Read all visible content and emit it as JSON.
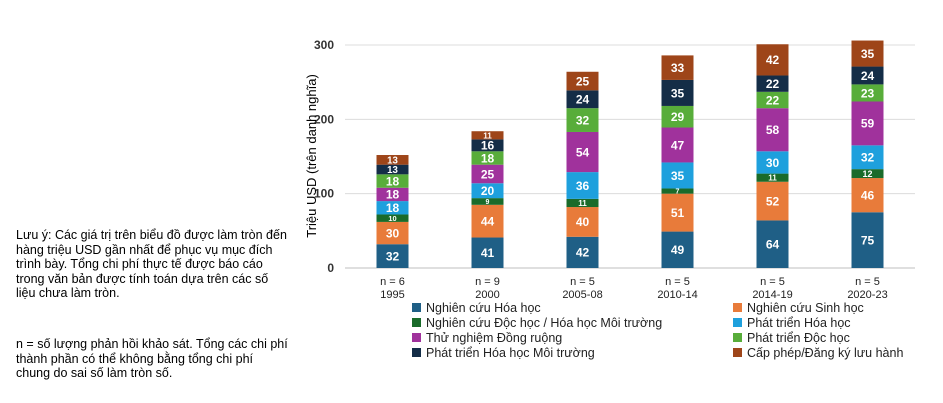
{
  "notes": {
    "rounding": "Lưu ý: Các giá trị trên biểu đồ được làm tròn đến hàng triệu USD gần nhất để phục vụ mục đích trình bày. Tổng chi phí thực tế được báo cáo trong văn bản được tính toán dựa trên các số liệu chưa làm tròn.",
    "n_definition": "n = số lượng phản hồi khảo sát. Tổng các chi phí thành phần có thể không bằng tổng chi phí chung do sai số làm tròn số."
  },
  "chart_data": {
    "type": "bar",
    "stacked": true,
    "title": "",
    "xlabel": "",
    "ylabel": "Triệu USD (trên danh nghĩa)",
    "ylim": [
      0,
      300
    ],
    "yticks": [
      0,
      100,
      200,
      300
    ],
    "grid": true,
    "legend": "bottom",
    "categories": [
      "1995",
      "2000",
      "2005-08",
      "2010-14",
      "2014-19",
      "2020-23"
    ],
    "n_labels": [
      "n = 6",
      "n = 9",
      "n = 5",
      "n = 5",
      "n = 5",
      "n = 5"
    ],
    "series": [
      {
        "name": "Nghiên cứu Hóa học",
        "color": "#1f5f86",
        "values": [
          32,
          41,
          42,
          49,
          64,
          75
        ]
      },
      {
        "name": "Nghiên cứu Sinh học",
        "color": "#e87b3a",
        "values": [
          30,
          44,
          40,
          51,
          52,
          46
        ]
      },
      {
        "name": "Nghiên cứu Độc học / Hóa học Môi trường",
        "color": "#1a6b2a",
        "values": [
          10,
          9,
          11,
          7,
          11,
          12
        ]
      },
      {
        "name": "Phát triển Hóa học",
        "color": "#1ea0dd",
        "values": [
          18,
          20,
          36,
          35,
          30,
          32
        ]
      },
      {
        "name": "Thử nghiệm Đồng ruộng",
        "color": "#a0329c",
        "values": [
          18,
          25,
          54,
          47,
          58,
          59
        ]
      },
      {
        "name": "Phát triển Độc học",
        "color": "#58ad3a",
        "values": [
          18,
          18,
          32,
          29,
          22,
          23
        ]
      },
      {
        "name": "Phát triển Hóa học Môi trường",
        "color": "#142d47",
        "values": [
          13,
          16,
          24,
          35,
          22,
          24
        ]
      },
      {
        "name": "Cấp phép/Đăng ký lưu hành",
        "color": "#9e4519",
        "values": [
          13,
          11,
          25,
          33,
          42,
          35
        ]
      }
    ]
  }
}
